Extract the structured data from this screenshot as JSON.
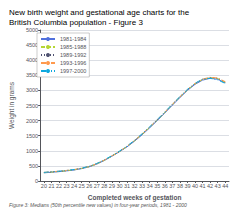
{
  "chart_data": {
    "type": "line",
    "title": "New birth weight and gestational age charts for the\nBritish Columbia population - Figure 3",
    "footnote": "Figure 3: Medians (50th percentile new values) in four-year periods, 1981 - 2000",
    "xlabel": "Completed weeks of gestation",
    "ylabel": "Weight in grams",
    "x": [
      20,
      21,
      22,
      23,
      24,
      25,
      26,
      27,
      28,
      29,
      30,
      31,
      32,
      33,
      34,
      35,
      36,
      37,
      38,
      39,
      40,
      41,
      42,
      43,
      44
    ],
    "xlim": [
      19.5,
      44.5
    ],
    "xticks": [
      20,
      21,
      22,
      23,
      24,
      25,
      26,
      27,
      28,
      29,
      30,
      31,
      32,
      33,
      34,
      35,
      36,
      37,
      38,
      39,
      40,
      41,
      42,
      43,
      44
    ],
    "ylim": [
      0,
      5000
    ],
    "yticks": [
      0,
      500,
      1000,
      1500,
      2000,
      2500,
      3000,
      3500,
      4000,
      4500,
      5000
    ],
    "grid": true,
    "legend": "upper left",
    "series": [
      {
        "name": "1981-1984",
        "line_style": "solid",
        "values": [
          270,
          290,
          310,
          335,
          365,
          410,
          470,
          560,
          680,
          820,
          970,
          1130,
          1320,
          1530,
          1760,
          2000,
          2250,
          2510,
          2760,
          3000,
          3200,
          3340,
          3400,
          3370,
          3250
        ]
      },
      {
        "name": "1985-1988",
        "line_style": "dashed",
        "values": [
          275,
          295,
          315,
          340,
          370,
          415,
          475,
          565,
          685,
          825,
          975,
          1140,
          1330,
          1545,
          1775,
          2015,
          2265,
          2525,
          2775,
          3015,
          3215,
          3360,
          3420,
          3395,
          3270
        ]
      },
      {
        "name": "1989-1992",
        "line_style": "dotted",
        "values": [
          280,
          300,
          320,
          345,
          375,
          420,
          480,
          570,
          690,
          830,
          980,
          1145,
          1340,
          1555,
          1785,
          2025,
          2275,
          2535,
          2785,
          3025,
          3220,
          3365,
          3425,
          3400,
          3280
        ]
      },
      {
        "name": "1993-1996",
        "line_style": "dashdot",
        "values": [
          285,
          305,
          325,
          350,
          380,
          425,
          485,
          575,
          695,
          835,
          985,
          1150,
          1345,
          1560,
          1790,
          2030,
          2280,
          2540,
          2790,
          3030,
          3230,
          3375,
          3435,
          3410,
          3290
        ]
      },
      {
        "name": "1997-2000",
        "line_style": "dashdotdot",
        "values": [
          285,
          305,
          325,
          350,
          380,
          425,
          490,
          580,
          700,
          840,
          990,
          1155,
          1350,
          1565,
          1795,
          2035,
          2285,
          2545,
          2795,
          3035,
          3235,
          3375,
          3400,
          3350,
          3230
        ]
      }
    ]
  }
}
